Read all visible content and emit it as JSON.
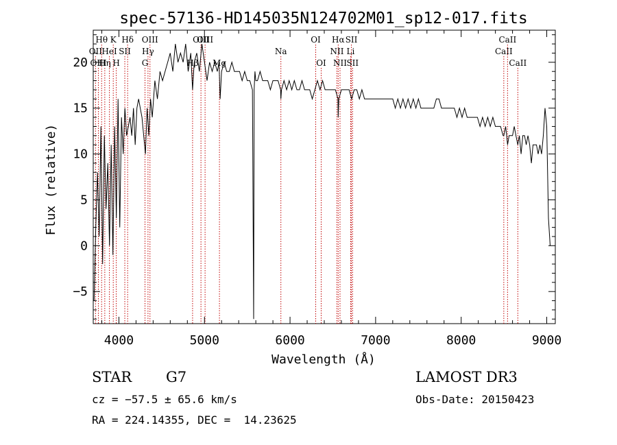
{
  "chart_data": {
    "type": "line",
    "title": "spec-57136-HD145035N124702M01_sp12-017.fits",
    "xlabel": "Wavelength (Å)",
    "ylabel": "Flux (relative)",
    "xlim": [
      3700,
      9100
    ],
    "ylim": [
      -8.5,
      23.5
    ],
    "xticks": [
      4000,
      5000,
      6000,
      7000,
      8000,
      9000
    ],
    "xtick_labels": [
      "4000",
      "5000",
      "6000",
      "7000",
      "8000",
      "9000"
    ],
    "yticks": [
      -5,
      0,
      5,
      10,
      15,
      20
    ],
    "ytick_labels": [
      "−5",
      "0",
      "5",
      "10",
      "15",
      "20"
    ],
    "grid": false,
    "series": [
      {
        "color": "#000000",
        "x": [
          3710,
          3730,
          3750,
          3770,
          3790,
          3810,
          3830,
          3850,
          3870,
          3890,
          3910,
          3930,
          3950,
          3970,
          3990,
          4010,
          4030,
          4050,
          4070,
          4090,
          4110,
          4130,
          4150,
          4170,
          4190,
          4210,
          4230,
          4250,
          4270,
          4290,
          4310,
          4330,
          4350,
          4370,
          4390,
          4420,
          4450,
          4480,
          4510,
          4540,
          4570,
          4600,
          4630,
          4660,
          4690,
          4720,
          4750,
          4780,
          4810,
          4840,
          4861,
          4880,
          4910,
          4940,
          4970,
          5000,
          5030,
          5060,
          5090,
          5120,
          5150,
          5170,
          5183,
          5200,
          5230,
          5260,
          5290,
          5320,
          5350,
          5380,
          5410,
          5440,
          5470,
          5500,
          5530,
          5560,
          5575,
          5580,
          5590,
          5600,
          5620,
          5650,
          5680,
          5710,
          5740,
          5770,
          5800,
          5830,
          5860,
          5890,
          5893,
          5900,
          5930,
          5960,
          5990,
          6020,
          6050,
          6080,
          6110,
          6140,
          6170,
          6200,
          6230,
          6260,
          6290,
          6320,
          6350,
          6380,
          6410,
          6440,
          6470,
          6500,
          6530,
          6560,
          6563,
          6570,
          6600,
          6630,
          6660,
          6690,
          6720,
          6750,
          6780,
          6810,
          6840,
          6870,
          6900,
          6930,
          6960,
          6990,
          7020,
          7050,
          7080,
          7110,
          7140,
          7170,
          7200,
          7230,
          7260,
          7290,
          7320,
          7350,
          7380,
          7410,
          7440,
          7470,
          7500,
          7530,
          7560,
          7590,
          7620,
          7650,
          7680,
          7710,
          7740,
          7770,
          7800,
          7830,
          7860,
          7890,
          7920,
          7950,
          7980,
          8010,
          8040,
          8070,
          8100,
          8130,
          8160,
          8190,
          8220,
          8250,
          8280,
          8310,
          8340,
          8370,
          8400,
          8430,
          8460,
          8490,
          8498,
          8520,
          8542,
          8560,
          8580,
          8600,
          8620,
          8640,
          8662,
          8680,
          8700,
          8720,
          8740,
          8760,
          8780,
          8800,
          8820,
          8840,
          8860,
          8880,
          8900,
          8920,
          8940,
          8960,
          8980,
          9000,
          9020,
          9040
        ],
        "y": [
          -6,
          2,
          8,
          1,
          13,
          -2,
          12,
          4,
          9,
          0,
          11,
          -1,
          13,
          3,
          16,
          2,
          14,
          10,
          15,
          12,
          13,
          14,
          12,
          15,
          11,
          15,
          16,
          15,
          14,
          12,
          10,
          15,
          12,
          16,
          14,
          18,
          16,
          19,
          18,
          19,
          20,
          21,
          19,
          22,
          20,
          21,
          20,
          22,
          19,
          21,
          17,
          20,
          21,
          19,
          22,
          20,
          18,
          20,
          19,
          20,
          19,
          20,
          16,
          19,
          20,
          19,
          19,
          20,
          19,
          19,
          19,
          18,
          19,
          18,
          18,
          17,
          -8,
          17,
          19,
          18,
          18,
          19,
          18,
          18,
          18,
          17,
          18,
          18,
          18,
          17,
          16,
          17,
          18,
          17,
          18,
          17,
          18,
          17,
          17,
          18,
          17,
          17,
          17,
          16,
          17,
          18,
          17,
          18,
          17,
          17,
          17,
          17,
          17,
          16,
          14,
          16,
          17,
          17,
          17,
          17,
          16,
          17,
          17,
          16,
          17,
          16,
          16,
          16,
          16,
          16,
          16,
          16,
          16,
          16,
          16,
          16,
          16,
          15,
          16,
          15,
          16,
          15,
          16,
          15,
          16,
          15,
          16,
          15,
          15,
          15,
          15,
          15,
          15,
          16,
          16,
          15,
          15,
          15,
          15,
          15,
          15,
          14,
          15,
          14,
          15,
          14,
          14,
          14,
          14,
          14,
          13,
          14,
          13,
          14,
          13,
          14,
          13,
          13,
          13,
          12,
          12,
          13,
          11,
          12,
          12,
          12,
          13,
          12,
          11,
          12,
          10,
          12,
          12,
          11,
          12,
          11,
          9,
          11,
          11,
          11,
          10,
          11,
          10,
          12,
          15,
          13,
          3,
          0
        ]
      }
    ],
    "line_markers": [
      {
        "label": "Hθ",
        "x": 3798,
        "row": 0
      },
      {
        "label": "OII",
        "x": 3727,
        "row": 1
      },
      {
        "label": "OIII",
        "x": 3760,
        "row": 2
      },
      {
        "label": "Hη",
        "x": 3835,
        "row": 2
      },
      {
        "label": "HeI",
        "x": 3889,
        "row": 1
      },
      {
        "label": "K",
        "x": 3934,
        "row": 0
      },
      {
        "label": "H",
        "x": 3969,
        "row": 2
      },
      {
        "label": "SII",
        "x": 4069,
        "row": 1
      },
      {
        "label": "Hδ",
        "x": 4102,
        "row": 0
      },
      {
        "label": "OIII",
        "x": 4363,
        "row": 0
      },
      {
        "label": "Hγ",
        "x": 4340,
        "row": 1
      },
      {
        "label": "G",
        "x": 4305,
        "row": 2
      },
      {
        "label": "Hβ",
        "x": 4861,
        "row": 2
      },
      {
        "label": "OIII",
        "x": 4959,
        "row": 0
      },
      {
        "label": "OIII",
        "x": 5007,
        "row": 0
      },
      {
        "label": "Mg",
        "x": 5175,
        "row": 2
      },
      {
        "label": "Na",
        "x": 5893,
        "row": 1
      },
      {
        "label": "OI",
        "x": 6300,
        "row": 0
      },
      {
        "label": "OI",
        "x": 6364,
        "row": 2
      },
      {
        "label": "Hα",
        "x": 6563,
        "row": 0
      },
      {
        "label": "NII",
        "x": 6548,
        "row": 1
      },
      {
        "label": "NII",
        "x": 6584,
        "row": 2
      },
      {
        "label": "SII",
        "x": 6717,
        "row": 0
      },
      {
        "label": "Li",
        "x": 6708,
        "row": 1
      },
      {
        "label": "SII",
        "x": 6731,
        "row": 2
      },
      {
        "label": "CaII",
        "x": 8498,
        "row": 1
      },
      {
        "label": "CaII",
        "x": 8542,
        "row": 0
      },
      {
        "label": "CaII",
        "x": 8662,
        "row": 2
      }
    ]
  },
  "info": {
    "object_class": "STAR",
    "subclass": "G7",
    "survey": "LAMOST DR3",
    "redshift": "cz = −57.5 ± 65.6 km/s",
    "obs_date": "Obs-Date: 20150423",
    "coords": "RA = 224.14355, DEC =  14.23625"
  }
}
